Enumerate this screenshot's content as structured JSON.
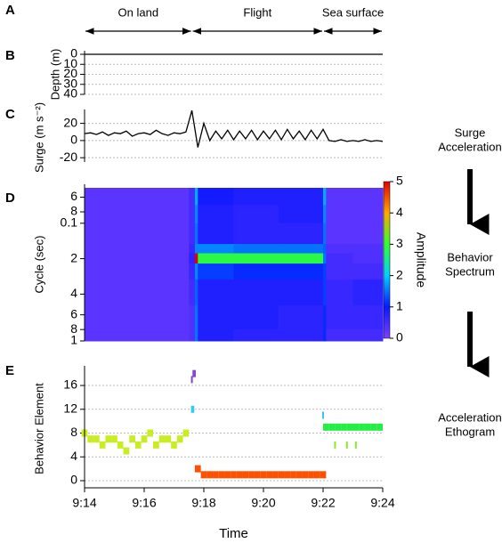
{
  "header": {
    "panel": "A",
    "phases": [
      {
        "label": "On land",
        "start": 554,
        "end": 557.6
      },
      {
        "label": "Flight",
        "start": 557.6,
        "end": 562
      },
      {
        "label": "Sea surface",
        "start": 562,
        "end": 564
      }
    ]
  },
  "side_notes": [
    [
      "Surge",
      "Acceleration"
    ],
    [
      "Behavior",
      "Spectrum"
    ],
    [
      "Acceleration",
      "Ethogram"
    ]
  ],
  "chart_data": [
    {
      "type": "line",
      "panel": "B",
      "ylabel": "Depth (m)",
      "y_inverted": true,
      "grid": true,
      "color": "#000000",
      "xlim": [
        554,
        564
      ],
      "ylim": [
        0,
        40
      ],
      "yticks": [
        0,
        10,
        20,
        30,
        40
      ],
      "x": [
        554,
        564
      ],
      "values": [
        0,
        0
      ]
    },
    {
      "type": "line",
      "panel": "C",
      "ylabel": "Surge (m s⁻²)",
      "grid": true,
      "color": "#000000",
      "xlim": [
        554,
        564
      ],
      "ylim": [
        -25,
        32
      ],
      "yticks": [
        -20,
        0,
        20
      ],
      "x": [
        554,
        554.2,
        554.4,
        554.6,
        554.8,
        555,
        555.2,
        555.4,
        555.6,
        555.8,
        556,
        556.2,
        556.4,
        556.6,
        556.8,
        557,
        557.2,
        557.4,
        557.6,
        557.8,
        558,
        558.2,
        558.4,
        558.6,
        558.8,
        559,
        559.2,
        559.4,
        559.6,
        559.8,
        560,
        560.2,
        560.4,
        560.6,
        560.8,
        561,
        561.2,
        561.4,
        561.6,
        561.8,
        562,
        562.2,
        562.4,
        562.6,
        562.8,
        563,
        563.2,
        563.4,
        563.6,
        563.8,
        564
      ],
      "values": [
        8,
        9,
        7,
        10,
        6,
        9,
        8,
        11,
        5,
        8,
        9,
        7,
        12,
        8,
        6,
        9,
        8,
        10,
        35,
        -8,
        20,
        0,
        11,
        2,
        12,
        1,
        11,
        2,
        12,
        1,
        11,
        2,
        12,
        1,
        13,
        2,
        11,
        1,
        12,
        2,
        13,
        0,
        -1,
        1,
        -1,
        0,
        -1,
        1,
        -1,
        0,
        -1
      ]
    },
    {
      "type": "heatmap",
      "panel": "D",
      "ylabel": "Cycle (sec)",
      "log_y": true,
      "y_inverted": true,
      "xlim": [
        554,
        564
      ],
      "ylim": [
        0.05,
        1
      ],
      "yticks": [
        {
          "value": 0.06,
          "label": "6"
        },
        {
          "value": 0.08,
          "label": "8"
        },
        0.1,
        {
          "value": 0.2,
          "label": "2"
        },
        {
          "value": 0.4,
          "label": "4"
        },
        {
          "value": 0.6,
          "label": "6"
        },
        {
          "value": 0.8,
          "label": "8"
        },
        1
      ],
      "x_edges": [
        554,
        557.5,
        557.7,
        557.8,
        559,
        560.5,
        562,
        562.1,
        563,
        564
      ],
      "y_edges": [
        0.05,
        0.07,
        0.1,
        0.15,
        0.18,
        0.22,
        0.3,
        0.5,
        0.8,
        1
      ],
      "z": [
        [
          0.3,
          0.5,
          1.8,
          0.9,
          0.8,
          0.8,
          1.8,
          0.3,
          0.3
        ],
        [
          0.3,
          0.5,
          1.6,
          0.8,
          0.7,
          0.8,
          1.6,
          0.3,
          0.3
        ],
        [
          0.3,
          0.5,
          1.5,
          0.8,
          0.7,
          0.7,
          1.5,
          0.3,
          0.3
        ],
        [
          0.3,
          0.6,
          1.6,
          1.6,
          1.5,
          1.5,
          1.4,
          0.4,
          0.4
        ],
        [
          0.3,
          0.7,
          5,
          2.9,
          2.9,
          2.9,
          1.5,
          0.5,
          0.4
        ],
        [
          0.3,
          0.6,
          1.6,
          1.2,
          1.1,
          1.1,
          1.2,
          0.5,
          0.5
        ],
        [
          0.3,
          0.5,
          1.4,
          0.8,
          0.8,
          0.8,
          1.2,
          0.6,
          0.7
        ],
        [
          0.3,
          0.4,
          1.5,
          0.8,
          0.8,
          0.7,
          1.1,
          0.6,
          0.6
        ],
        [
          0.3,
          0.4,
          1.5,
          0.8,
          0.7,
          0.7,
          1.1,
          0.5,
          0.5
        ]
      ],
      "zlim": [
        0,
        5
      ],
      "zticks": [
        0,
        1,
        2,
        3,
        4,
        5
      ],
      "colorbar_label": "Amplitude",
      "colormap": [
        "#8040ff",
        "#0818ff",
        "#00d0ff",
        "#30ff30",
        "#ffa800",
        "#e00000"
      ]
    },
    {
      "type": "scatter",
      "panel": "E",
      "ylabel": "Behavior Element",
      "grid": true,
      "xlabel": "Time",
      "xlim": [
        554,
        564
      ],
      "ylim": [
        -1.2,
        18.7
      ],
      "yticks": [
        0,
        4,
        8,
        12,
        16
      ],
      "xticks": [
        {
          "value": 554,
          "label": "9:14"
        },
        {
          "value": 556,
          "label": "9:16"
        },
        {
          "value": 558,
          "label": "9:18"
        },
        {
          "value": 560,
          "label": "9:20"
        },
        {
          "value": 562,
          "label": "9:22"
        },
        {
          "value": 564,
          "label": "9:24"
        }
      ],
      "series": [
        {
          "color": "#c8ee22",
          "x": [
            554,
            554.2,
            554.4,
            554.6,
            554.8,
            555,
            555.2,
            555.4,
            555.6,
            555.8,
            556,
            556.2,
            556.4,
            556.6,
            556.8,
            557,
            557.2,
            557.4
          ],
          "values": [
            8,
            7,
            7,
            6,
            7,
            7,
            6,
            5,
            7,
            6,
            7,
            8,
            6,
            7,
            7,
            6,
            7,
            8
          ]
        },
        {
          "color": "#ff5000",
          "x": [
            557.8,
            558,
            558.2,
            558.4,
            558.6,
            558.8,
            559,
            559.2,
            559.4,
            559.6,
            559.8,
            560,
            560.2,
            560.4,
            560.6,
            560.8,
            561,
            561.2,
            561.4,
            561.6,
            561.8,
            562
          ],
          "values": [
            2,
            1,
            1,
            1,
            1,
            1,
            1,
            1,
            1,
            1,
            1,
            1,
            1,
            1,
            1,
            1,
            1,
            1,
            1,
            1,
            1,
            1
          ]
        },
        {
          "color": "#22ee44",
          "x": [
            562.1,
            562.3,
            562.5,
            562.7,
            562.9,
            563.1,
            563.3,
            563.5,
            563.7,
            563.9
          ],
          "values": [
            9,
            9,
            9,
            9,
            9,
            9,
            9,
            9,
            9,
            9
          ]
        },
        {
          "color": "#33ccee",
          "x": [
            557.6,
            557.65,
            562
          ],
          "values": [
            12,
            12,
            11
          ]
        },
        {
          "color": "#8844cc",
          "x": [
            557.6,
            557.65,
            557.7
          ],
          "values": [
            17,
            18,
            18
          ]
        },
        {
          "color": "#88ee22",
          "x": [
            562.4,
            562.8,
            563.1
          ],
          "values": [
            6,
            6,
            6
          ]
        }
      ]
    }
  ]
}
